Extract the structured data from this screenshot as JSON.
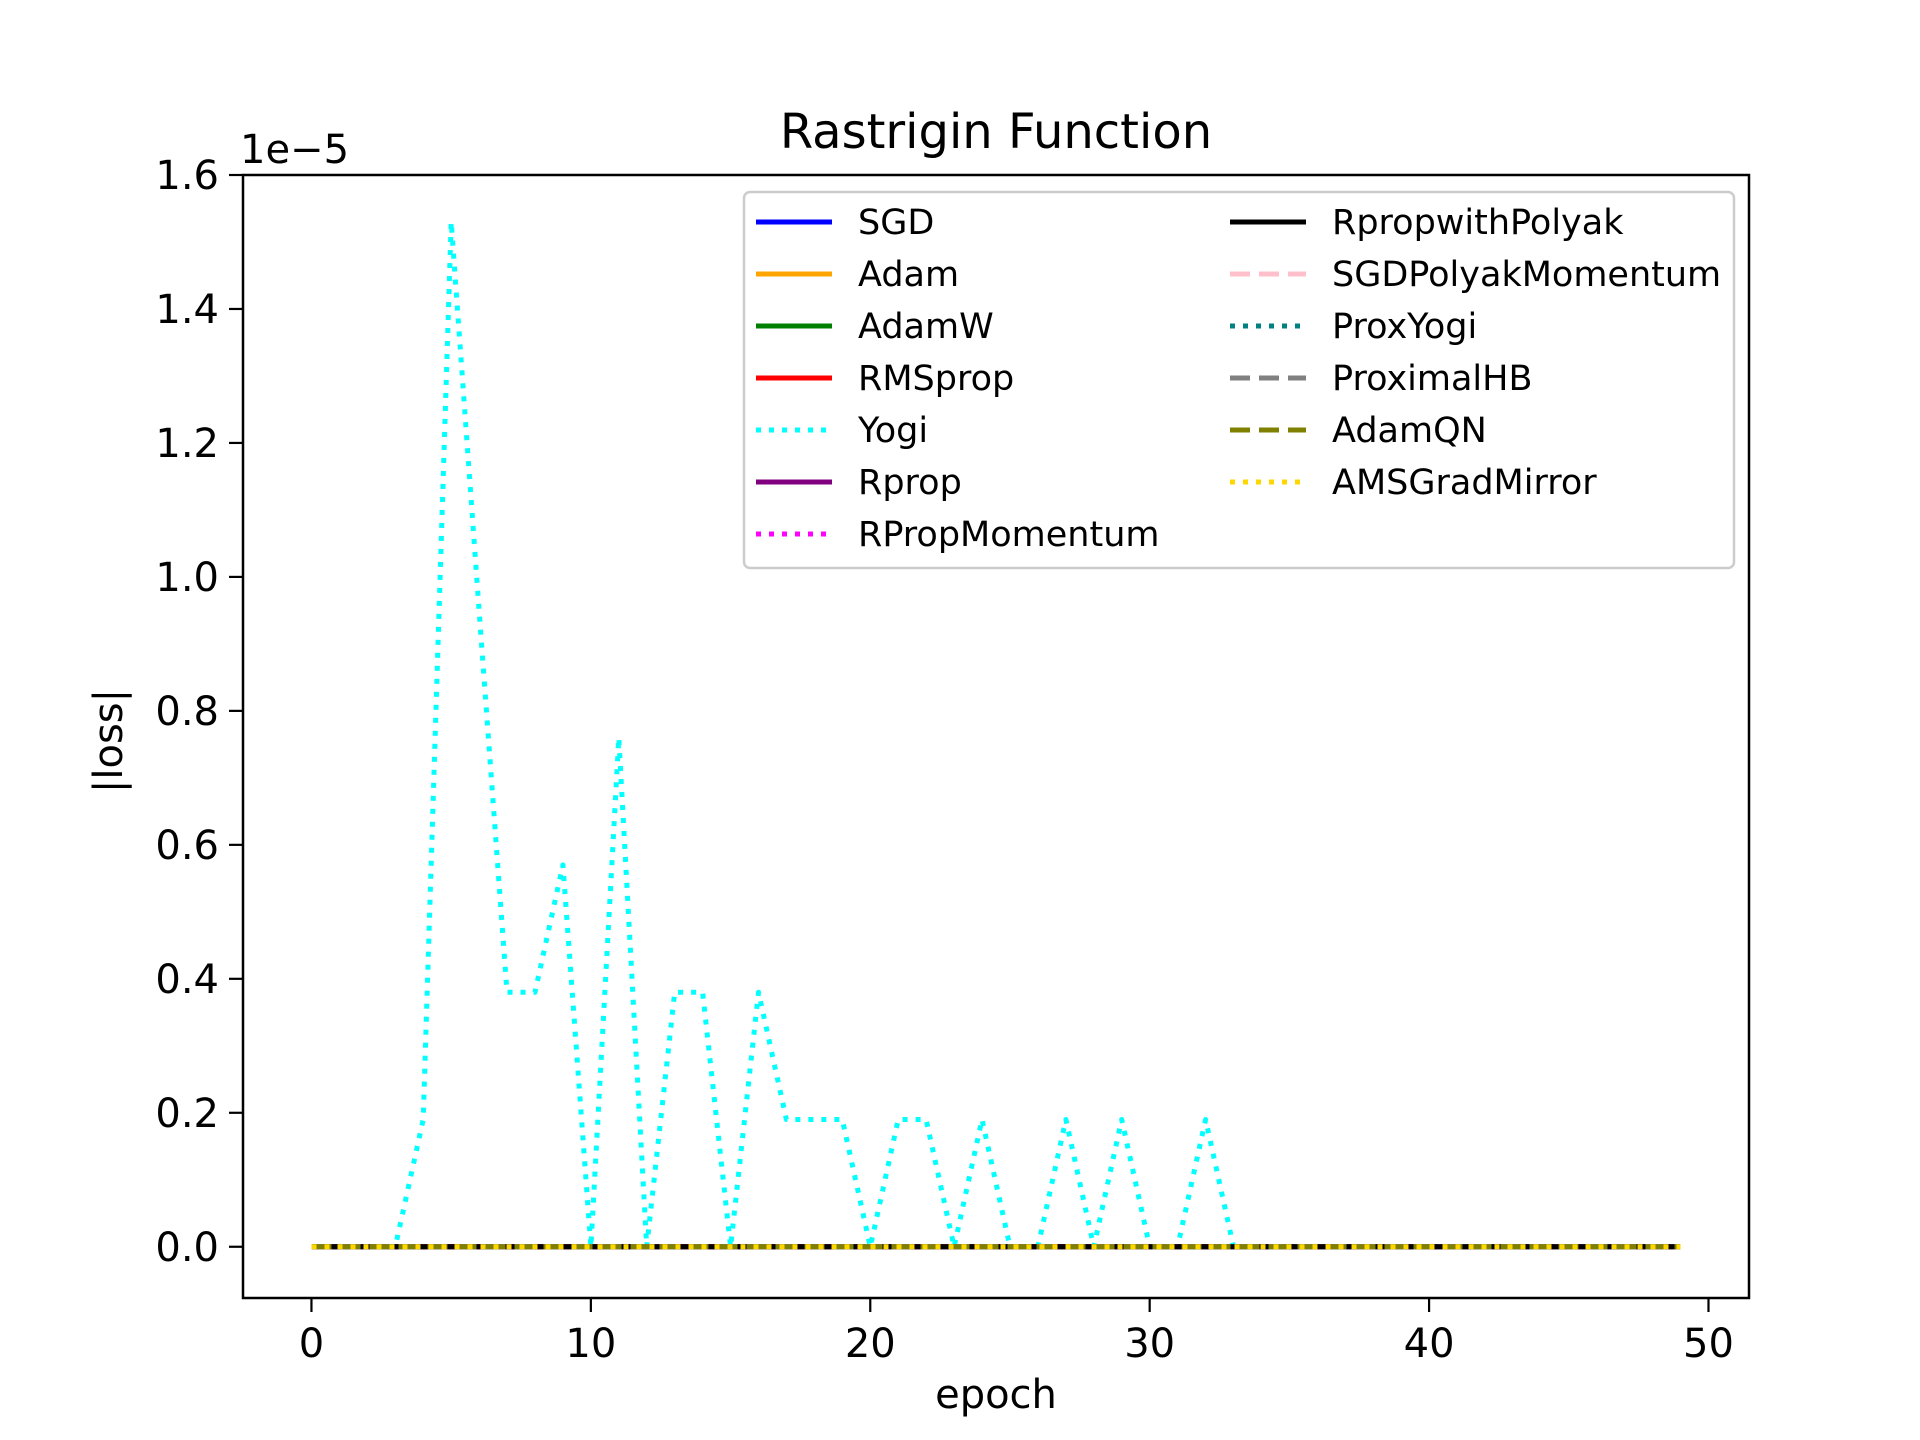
{
  "chart_data": {
    "type": "line",
    "title": "Rastrigin Function",
    "xlabel": "epoch",
    "ylabel": "|loss|",
    "y_offset_label": "1e−5",
    "xlim": [
      -2.45,
      51.45
    ],
    "ylim": [
      -0.0765,
      1.6
    ],
    "y_scale_note": "values in units of 1e-5",
    "x_ticks": [
      0,
      10,
      20,
      30,
      40,
      50
    ],
    "x_tick_labels": [
      "0",
      "10",
      "20",
      "30",
      "40",
      "50"
    ],
    "y_ticks": [
      0.0,
      0.2,
      0.4,
      0.6,
      0.8,
      1.0,
      1.2,
      1.4,
      1.6
    ],
    "y_tick_labels": [
      "0.0",
      "0.2",
      "0.4",
      "0.6",
      "0.8",
      "1.0",
      "1.2",
      "1.4",
      "1.6"
    ],
    "grid": false,
    "legend_position": "top-right",
    "legend_columns": 2,
    "series": [
      {
        "name": "SGD",
        "color": "#0000ff",
        "style": "solid",
        "values": "zeros"
      },
      {
        "name": "Adam",
        "color": "#ffa500",
        "style": "solid",
        "values": "zeros"
      },
      {
        "name": "AdamW",
        "color": "#008000",
        "style": "solid",
        "values": "zeros"
      },
      {
        "name": "RMSprop",
        "color": "#ff0000",
        "style": "solid",
        "values": "zeros"
      },
      {
        "name": "Yogi",
        "color": "#00ffff",
        "style": "dotted",
        "values": [
          0,
          0,
          0,
          0,
          0.19,
          1.53,
          0.95,
          0.38,
          0.38,
          0.57,
          0,
          0.76,
          0,
          0.38,
          0.38,
          0,
          0.38,
          0.19,
          0.19,
          0.19,
          0,
          0.19,
          0.19,
          0,
          0.19,
          0,
          0,
          0.19,
          0,
          0.19,
          0,
          0,
          0.19,
          0,
          0,
          0,
          0,
          0,
          0,
          0,
          0,
          0,
          0,
          0,
          0,
          0,
          0,
          0,
          0,
          0
        ]
      },
      {
        "name": "Rprop",
        "color": "#800080",
        "style": "solid",
        "values": "zeros"
      },
      {
        "name": "RPropMomentum",
        "color": "#ff00ff",
        "style": "dotted",
        "values": "zeros"
      },
      {
        "name": "RpropwithPolyak",
        "color": "#000000",
        "style": "solid",
        "values": "zeros"
      },
      {
        "name": "SGDPolyakMomentum",
        "color": "#ffc0cb",
        "style": "dashed",
        "values": "zeros"
      },
      {
        "name": "ProxYogi",
        "color": "#008080",
        "style": "dotted",
        "values": "zeros"
      },
      {
        "name": "ProximalHB",
        "color": "#808080",
        "style": "dashed",
        "values": "zeros"
      },
      {
        "name": "AdamQN",
        "color": "#808000",
        "style": "dashed",
        "values": "zeros"
      },
      {
        "name": "AMSGradMirror",
        "color": "#ffd700",
        "style": "dotted",
        "values": "zeros"
      }
    ],
    "x": [
      0,
      1,
      2,
      3,
      4,
      5,
      6,
      7,
      8,
      9,
      10,
      11,
      12,
      13,
      14,
      15,
      16,
      17,
      18,
      19,
      20,
      21,
      22,
      23,
      24,
      25,
      26,
      27,
      28,
      29,
      30,
      31,
      32,
      33,
      34,
      35,
      36,
      37,
      38,
      39,
      40,
      41,
      42,
      43,
      44,
      45,
      46,
      47,
      48,
      49
    ]
  }
}
